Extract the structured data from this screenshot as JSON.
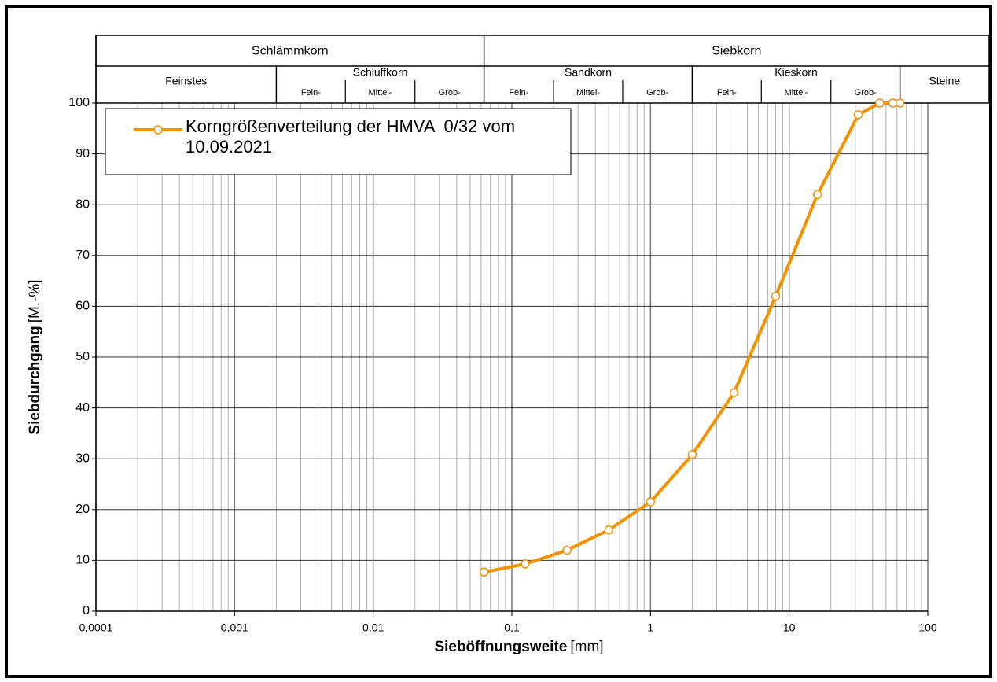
{
  "chart_data": {
    "type": "line",
    "ylabel": "Siebdurchgang",
    "ylabel_unit": "[M.-%]",
    "xlabel": "Sieböffnungsweite",
    "xlabel_unit": "[mm]",
    "xscale": "log",
    "xlim": [
      0.0001,
      100
    ],
    "xticks": [
      {
        "value": 0.0001,
        "label": "0,0001"
      },
      {
        "value": 0.001,
        "label": "0,001"
      },
      {
        "value": 0.01,
        "label": "0,01"
      },
      {
        "value": 0.1,
        "label": "0,1"
      },
      1,
      10,
      100
    ],
    "minor_per_decade": [
      2,
      3,
      4,
      5,
      6,
      7,
      8,
      9
    ],
    "ylim": [
      0,
      100
    ],
    "yticks": [
      0,
      10,
      20,
      30,
      40,
      50,
      60,
      70,
      80,
      90,
      100
    ],
    "grid": true,
    "legend": "upper left",
    "header_top": [
      {
        "label": "Schlämmkorn",
        "from": 0.0001,
        "to": 0.063
      },
      {
        "label": "Siebkorn",
        "from": 0.063
      }
    ],
    "header_groups": [
      {
        "label": "Feinstes",
        "from": 0.0001,
        "to": 0.002
      },
      {
        "label": "Schluffkorn",
        "from": 0.002,
        "to": 0.063,
        "subs": [
          {
            "label": "Fein-",
            "from": 0.002,
            "to": 0.0063
          },
          {
            "label": "Mittel-",
            "from": 0.0063,
            "to": 0.02
          },
          {
            "label": "Grob-",
            "from": 0.02,
            "to": 0.063
          }
        ]
      },
      {
        "label": "Sandkorn",
        "from": 0.063,
        "to": 2,
        "subs": [
          {
            "label": "Fein-",
            "from": 0.063,
            "to": 0.2
          },
          {
            "label": "Mittel-",
            "from": 0.2,
            "to": 0.63
          },
          {
            "label": "Grob-",
            "from": 0.63,
            "to": 2
          }
        ]
      },
      {
        "label": "Kieskorn",
        "from": 2,
        "to": 63,
        "subs": [
          {
            "label": "Fein-",
            "from": 2,
            "to": 6.3
          },
          {
            "label": "Mittel-",
            "from": 6.3,
            "to": 20
          },
          {
            "label": "Grob-",
            "from": 20,
            "to": 63
          }
        ]
      },
      {
        "label": "Steine",
        "from": 63
      }
    ],
    "series": [
      {
        "name": "Korngrößenverteilung der HMVA  0/32 vom 10.09.2021",
        "color": "#f39200",
        "x": [
          0.063,
          0.125,
          0.25,
          0.5,
          1,
          2,
          4,
          8,
          16,
          31.5,
          45,
          56,
          63
        ],
        "values": [
          7.7,
          9.3,
          12,
          16,
          21.5,
          30.8,
          43,
          62,
          82,
          97.7,
          100,
          100,
          100
        ]
      }
    ]
  }
}
